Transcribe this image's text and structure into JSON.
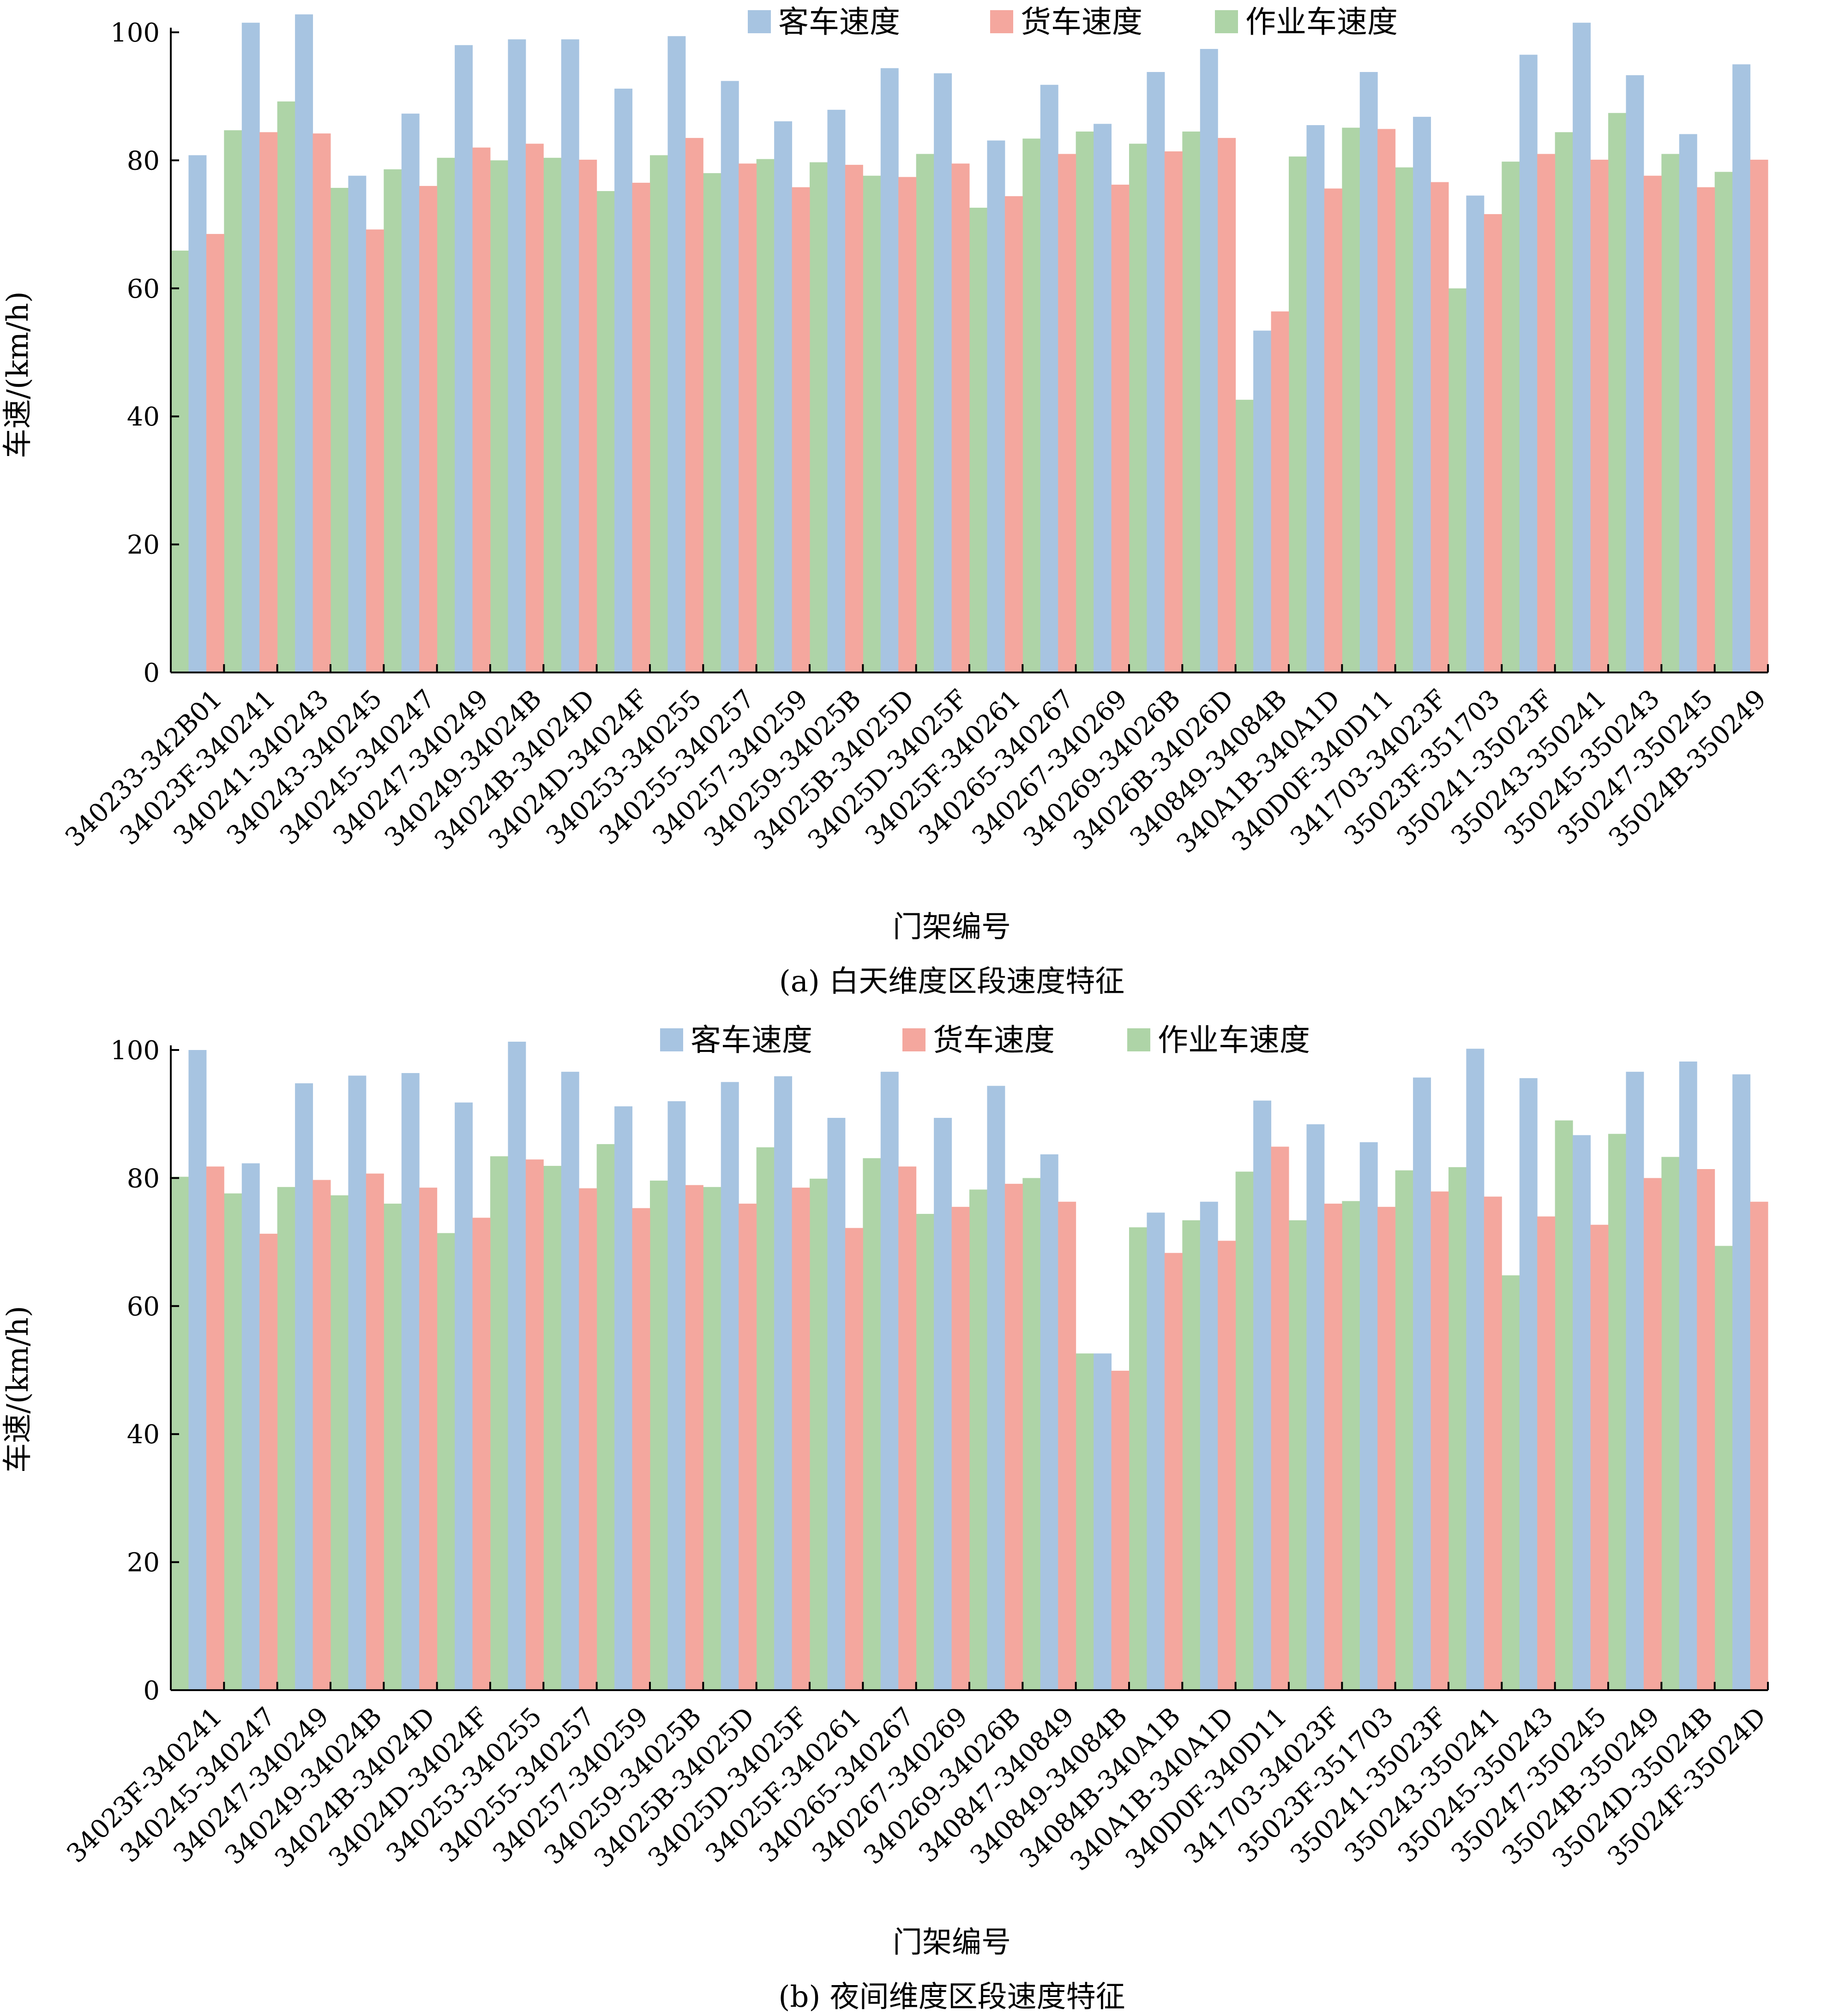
{
  "legend": [
    "客车速度",
    "货车速度",
    "作业车速度"
  ],
  "colors": {
    "客车速度": "#a7c4e1",
    "货车速度": "#f4a79e",
    "作业车速度": "#aed4a7"
  },
  "chart_data": [
    {
      "type": "bar",
      "caption": "(a) 白天维度区段速度特征",
      "xlabel": "门架编号",
      "ylabel": "车速/(km/h)",
      "ylim": [
        0,
        100
      ],
      "yticks": [
        0,
        20,
        40,
        60,
        80,
        100
      ],
      "legend_position": "top-center",
      "categories": [
        "340233-342B01",
        "34023F-340241",
        "340241-340243",
        "340243-340245",
        "340245-340247",
        "340247-340249",
        "340249-34024B",
        "34024B-34024D",
        "34024D-34024F",
        "340253-340255",
        "340255-340257",
        "340257-340259",
        "340259-34025B",
        "34025B-34025D",
        "34025D-34025F",
        "34025F-340261",
        "340265-340267",
        "340267-340269",
        "340269-34026B",
        "34026B-34026D",
        "340849-34084B",
        "340A1B-340A1D",
        "340D0F-340D11",
        "341703-34023F",
        "35023F-351703",
        "350241-35023F",
        "350243-350241",
        "350245-350243",
        "350247-350245",
        "35024B-350249"
      ],
      "series": [
        {
          "name": "作业车速度",
          "values": [
            65.9,
            84.7,
            89.2,
            75.7,
            78.6,
            80.4,
            80.0,
            80.4,
            75.2,
            80.8,
            78.0,
            80.2,
            79.7,
            77.6,
            81.0,
            72.6,
            83.4,
            84.5,
            82.6,
            84.5,
            42.6,
            80.6,
            85.1,
            78.9,
            60.0,
            79.8,
            84.4,
            87.4,
            81.0,
            78.2
          ]
        },
        {
          "name": "客车速度",
          "values": [
            80.8,
            101.5,
            102.8,
            77.6,
            87.3,
            98.0,
            98.9,
            98.9,
            91.2,
            99.4,
            92.4,
            86.1,
            87.9,
            94.4,
            93.6,
            83.1,
            91.8,
            85.7,
            93.8,
            97.4,
            53.4,
            85.5,
            93.8,
            86.8,
            74.5,
            96.5,
            101.5,
            93.3,
            84.1,
            95.0
          ]
        },
        {
          "name": "货车速度",
          "values": [
            68.5,
            84.4,
            84.2,
            69.2,
            76.0,
            82.0,
            82.6,
            80.1,
            76.5,
            83.5,
            79.5,
            75.8,
            79.3,
            77.4,
            79.5,
            74.4,
            81.0,
            76.2,
            81.4,
            83.5,
            56.4,
            75.6,
            84.9,
            76.6,
            71.6,
            81.0,
            80.1,
            77.6,
            75.8,
            80.1
          ]
        }
      ]
    },
    {
      "type": "bar",
      "caption": "(b) 夜间维度区段速度特征",
      "xlabel": "门架编号",
      "ylabel": "车速/(km/h)",
      "ylim": [
        0,
        100
      ],
      "yticks": [
        0,
        20,
        40,
        60,
        80,
        100
      ],
      "legend_position": "top-center",
      "categories": [
        "34023F-340241",
        "340245-340247",
        "340247-340249",
        "340249-34024B",
        "34024B-34024D",
        "34024D-34024F",
        "340253-340255",
        "340255-340257",
        "340257-340259",
        "340259-34025B",
        "34025B-34025D",
        "34025D-34025F",
        "34025F-340261",
        "340265-340267",
        "340267-340269",
        "340269-34026B",
        "340847-340849",
        "340849-34084B",
        "34084B-340A1B",
        "340A1B-340A1D",
        "340D0F-340D11",
        "341703-34023F",
        "35023F-351703",
        "350241-35023F",
        "350243-350241",
        "350245-350243",
        "350247-350245",
        "35024B-350249",
        "35024D-35024B",
        "35024F-35024D"
      ],
      "series": [
        {
          "name": "作业车速度",
          "values": [
            80.2,
            77.6,
            78.6,
            77.3,
            76.0,
            71.4,
            83.4,
            81.9,
            85.3,
            79.6,
            78.6,
            84.8,
            79.9,
            83.1,
            74.4,
            78.2,
            80.0,
            52.6,
            72.3,
            73.4,
            81.0,
            73.4,
            76.4,
            81.2,
            81.7,
            64.8,
            89.0,
            86.9,
            83.3,
            69.4
          ]
        },
        {
          "name": "客车速度",
          "values": [
            100.0,
            82.3,
            94.8,
            96.0,
            96.4,
            91.8,
            101.3,
            96.6,
            91.2,
            92.0,
            95.0,
            95.9,
            89.4,
            96.6,
            89.4,
            94.4,
            83.7,
            52.6,
            74.6,
            76.3,
            92.1,
            88.4,
            85.6,
            95.7,
            100.2,
            95.6,
            86.7,
            96.6,
            98.2,
            96.2
          ]
        },
        {
          "name": "货车速度",
          "values": [
            81.8,
            71.3,
            79.7,
            80.7,
            78.5,
            73.8,
            82.9,
            78.4,
            75.3,
            78.9,
            76.0,
            78.5,
            72.2,
            81.8,
            75.5,
            79.1,
            76.3,
            49.9,
            68.3,
            70.2,
            84.9,
            76.0,
            75.5,
            77.9,
            77.1,
            74.0,
            72.7,
            80.0,
            81.4,
            76.3
          ]
        }
      ]
    }
  ]
}
